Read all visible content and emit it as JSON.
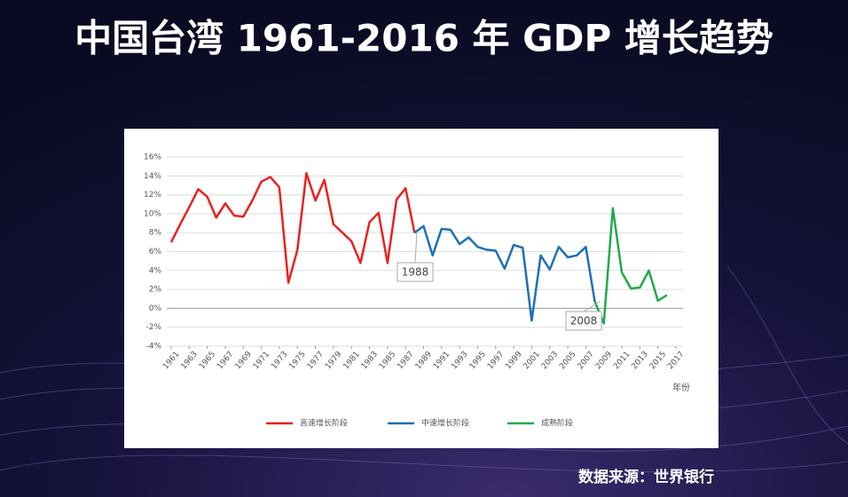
{
  "chart_data": {
    "type": "line",
    "title": "中国台湾 1961-2016 年 GDP 增长趋势",
    "source": "数据来源：世界银行",
    "x_label": "年份",
    "x": [
      1961,
      1962,
      1963,
      1964,
      1965,
      1966,
      1967,
      1968,
      1969,
      1970,
      1971,
      1972,
      1973,
      1974,
      1975,
      1976,
      1977,
      1978,
      1979,
      1980,
      1981,
      1982,
      1983,
      1984,
      1985,
      1986,
      1987,
      1988,
      1989,
      1990,
      1991,
      1992,
      1993,
      1994,
      1995,
      1996,
      1997,
      1998,
      1999,
      2000,
      2001,
      2002,
      2003,
      2004,
      2005,
      2006,
      2007,
      2008,
      2009,
      2010,
      2011,
      2012,
      2013,
      2014,
      2015,
      2016
    ],
    "series": [
      {
        "name": "高速增长阶段",
        "color": "#e8221f",
        "values": [
          7.0,
          8.9,
          10.7,
          12.6,
          11.8,
          9.6,
          11.1,
          9.8,
          9.7,
          11.4,
          13.4,
          13.9,
          12.8,
          2.7,
          6.2,
          14.3,
          11.4,
          13.6,
          8.9,
          8.0,
          7.1,
          4.8,
          9.1,
          10.1,
          4.8,
          11.5,
          12.7,
          8.0,
          null,
          null,
          null,
          null,
          null,
          null,
          null,
          null,
          null,
          null,
          null,
          null,
          null,
          null,
          null,
          null,
          null,
          null,
          null,
          null,
          null,
          null,
          null,
          null,
          null,
          null,
          null,
          null
        ]
      },
      {
        "name": "中速增长阶段",
        "color": "#1f6fb8",
        "values": [
          null,
          null,
          null,
          null,
          null,
          null,
          null,
          null,
          null,
          null,
          null,
          null,
          null,
          null,
          null,
          null,
          null,
          null,
          null,
          null,
          null,
          null,
          null,
          null,
          null,
          null,
          null,
          8.0,
          8.7,
          5.6,
          8.4,
          8.3,
          6.8,
          7.5,
          6.5,
          6.2,
          6.1,
          4.2,
          6.7,
          6.4,
          -1.3,
          5.6,
          4.1,
          6.5,
          5.4,
          5.6,
          6.5,
          0.7,
          null,
          null,
          null,
          null,
          null,
          null,
          null,
          null
        ]
      },
      {
        "name": "成熟阶段",
        "color": "#22a94a",
        "values": [
          null,
          null,
          null,
          null,
          null,
          null,
          null,
          null,
          null,
          null,
          null,
          null,
          null,
          null,
          null,
          null,
          null,
          null,
          null,
          null,
          null,
          null,
          null,
          null,
          null,
          null,
          null,
          null,
          null,
          null,
          null,
          null,
          null,
          null,
          null,
          null,
          null,
          null,
          null,
          null,
          null,
          null,
          null,
          null,
          null,
          null,
          null,
          0.7,
          -1.6,
          10.6,
          3.8,
          2.1,
          2.2,
          4.0,
          0.8,
          1.4
        ]
      }
    ],
    "annotations": [
      "1988",
      "2008"
    ],
    "xlim": [
      1961,
      2017
    ],
    "xticks": [
      1961,
      1963,
      1965,
      1967,
      1969,
      1971,
      1973,
      1975,
      1977,
      1979,
      1981,
      1983,
      1985,
      1987,
      1989,
      1991,
      1993,
      1995,
      1997,
      1999,
      2001,
      2003,
      2005,
      2007,
      2009,
      2011,
      2013,
      2015,
      2017
    ],
    "ylim": [
      -4,
      16
    ],
    "yticks": [
      {
        "value": -4,
        "label": "-4%"
      },
      {
        "value": -2,
        "label": "-2%"
      },
      {
        "value": 0,
        "label": "0%"
      },
      {
        "value": 2,
        "label": "2%"
      },
      {
        "value": 4,
        "label": "4%"
      },
      {
        "value": 6,
        "label": "6%"
      },
      {
        "value": 8,
        "label": "8%"
      },
      {
        "value": 10,
        "label": "10%"
      },
      {
        "value": 12,
        "label": "12%"
      },
      {
        "value": 14,
        "label": "14%"
      },
      {
        "value": 16,
        "label": "16%"
      }
    ],
    "grid": true
  }
}
